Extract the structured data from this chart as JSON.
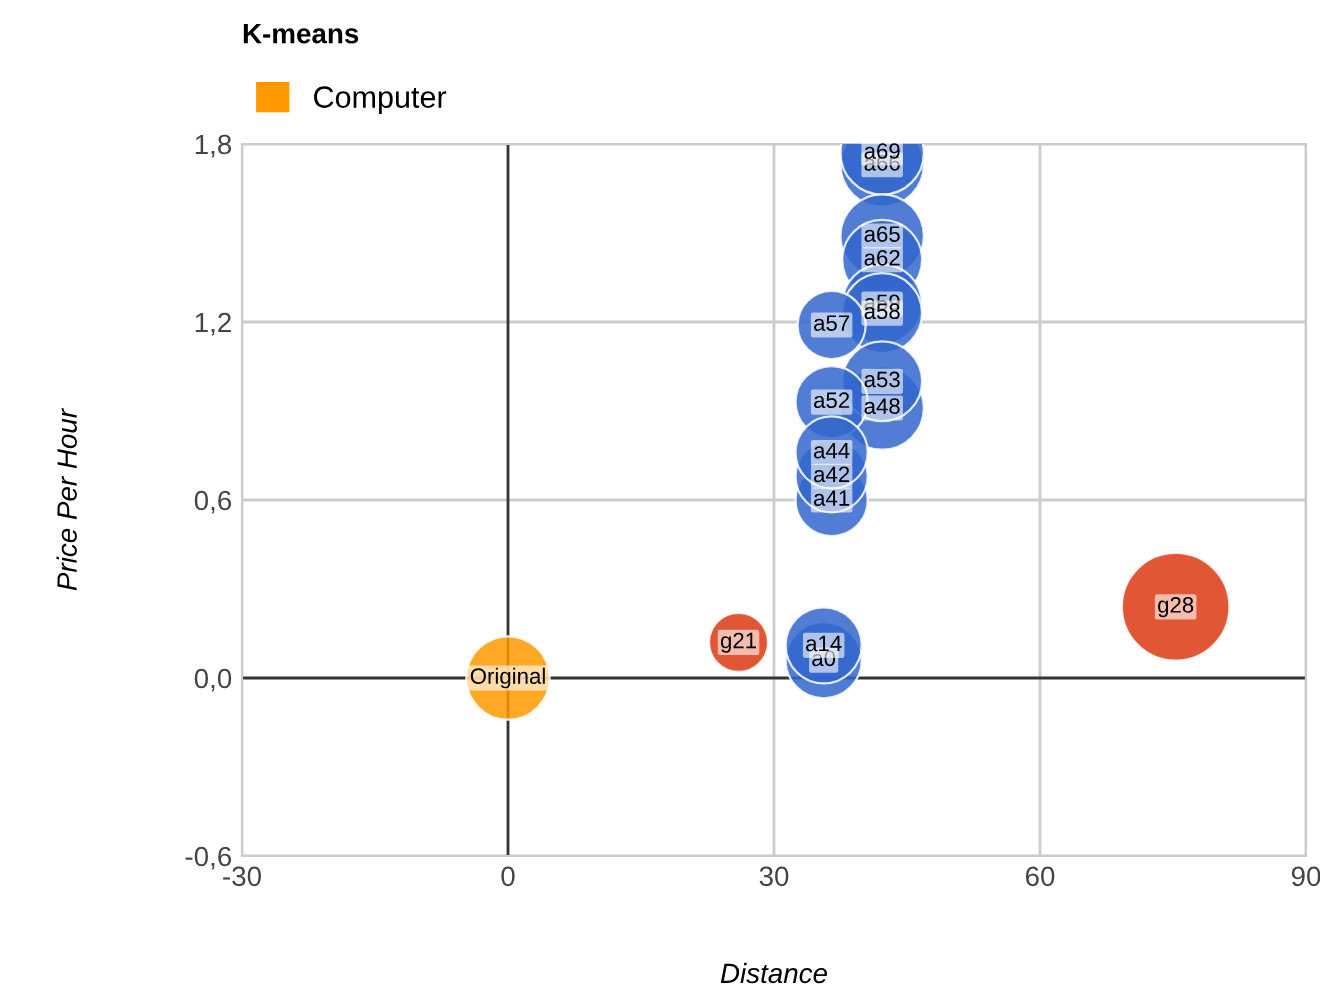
{
  "chart_data": {
    "type": "bubble",
    "title": "K-means",
    "xlabel": "Distance",
    "ylabel": "Price Per Hour",
    "xlim": [
      -30,
      90
    ],
    "xticks": [
      -30,
      0,
      30,
      60,
      90
    ],
    "ylim": [
      -0.6,
      1.8
    ],
    "yticks": [
      {
        "value": -0.6,
        "label": "-0,6"
      },
      {
        "value": 0,
        "label": "0,0"
      },
      {
        "value": 0.6,
        "label": "0,6"
      },
      {
        "value": 1.2,
        "label": "1,2"
      },
      {
        "value": 1.8,
        "label": "1,8"
      }
    ],
    "grid": true,
    "legend": "top left",
    "series": [
      {
        "color": "#3366cc",
        "x": [
          42.2,
          42.2,
          42.2,
          42.2,
          42.2,
          42.2,
          36.5,
          42.2,
          42.2,
          36.5,
          36.5,
          36.5,
          36.5,
          35.6,
          35.6
        ],
        "values": [
          1.73,
          1.77,
          1.49,
          1.41,
          1.26,
          1.23,
          1.19,
          0.91,
          1.0,
          0.93,
          0.6,
          0.68,
          0.76,
          0.06,
          0.11
        ],
        "sizes": [
          0.6,
          0.6,
          0.6,
          0.55,
          0.55,
          0.55,
          0.4,
          0.6,
          0.55,
          0.45,
          0.45,
          0.45,
          0.45,
          0.5,
          0.5
        ]
      },
      {
        "color": "#dc3912",
        "x": [
          26,
          75.3
        ],
        "values": [
          0.12,
          0.24
        ],
        "sizes": [
          0.3,
          1
        ]
      },
      {
        "name": "Computer",
        "color": "#ff9900",
        "x": [
          0
        ],
        "values": [
          0
        ],
        "sizes": [
          0.6
        ]
      }
    ],
    "annotations": [
      {
        "text": "a66",
        "x": 42.2,
        "y": 1.73
      },
      {
        "text": "a69",
        "x": 42.2,
        "y": 1.77
      },
      {
        "text": "a65",
        "x": 42.2,
        "y": 1.49
      },
      {
        "text": "a62",
        "x": 42.2,
        "y": 1.41
      },
      {
        "text": "a59",
        "x": 42.2,
        "y": 1.26
      },
      {
        "text": "a58",
        "x": 42.2,
        "y": 1.23
      },
      {
        "text": "a57",
        "x": 36.5,
        "y": 1.19
      },
      {
        "text": "a48",
        "x": 42.2,
        "y": 0.91
      },
      {
        "text": "a53",
        "x": 42.2,
        "y": 1.0
      },
      {
        "text": "a52",
        "x": 36.5,
        "y": 0.93
      },
      {
        "text": "a41",
        "x": 36.5,
        "y": 0.6
      },
      {
        "text": "a42",
        "x": 36.5,
        "y": 0.68
      },
      {
        "text": "a44",
        "x": 36.5,
        "y": 0.76
      },
      {
        "text": "a0",
        "x": 35.6,
        "y": 0.06
      },
      {
        "text": "a14",
        "x": 35.6,
        "y": 0.11
      },
      {
        "text": "g21",
        "x": 26,
        "y": 0.12
      },
      {
        "text": "g28",
        "x": 75.3,
        "y": 0.24
      },
      {
        "text": "Original",
        "x": 0,
        "y": 0
      }
    ]
  }
}
